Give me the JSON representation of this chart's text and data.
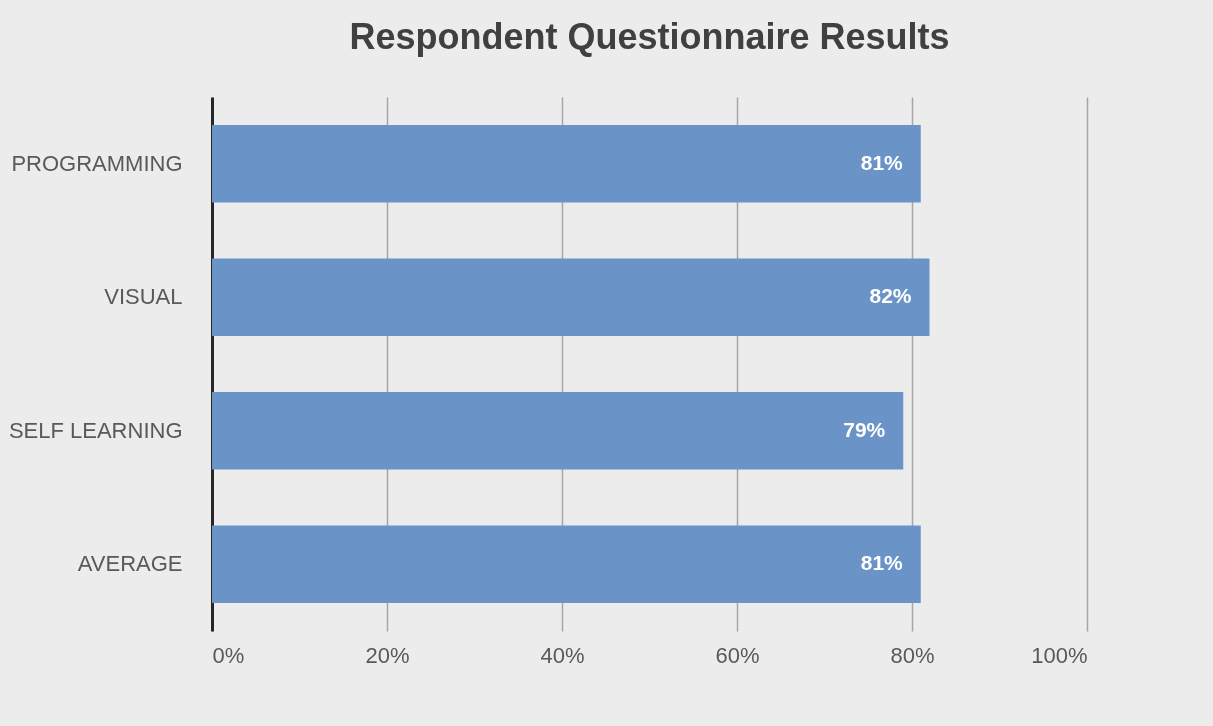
{
  "chart_data": {
    "type": "bar",
    "orientation": "horizontal",
    "title": "Respondent Questionnaire Results",
    "categories": [
      "PROGRAMMING",
      "VISUAL",
      "SELF LEARNING",
      "AVERAGE"
    ],
    "values": [
      81,
      82,
      79,
      81
    ],
    "value_labels": [
      "81%",
      "82%",
      "79%",
      "81%"
    ],
    "color": "#6a93c8",
    "xlim": [
      0,
      100
    ],
    "xticks": [
      {
        "value": 0,
        "label": "0%"
      },
      {
        "value": 20,
        "label": "20%"
      },
      {
        "value": 40,
        "label": "40%"
      },
      {
        "value": 60,
        "label": "60%"
      },
      {
        "value": 80,
        "label": "80%"
      },
      {
        "value": 100,
        "label": "100%"
      }
    ],
    "grid": "x"
  }
}
